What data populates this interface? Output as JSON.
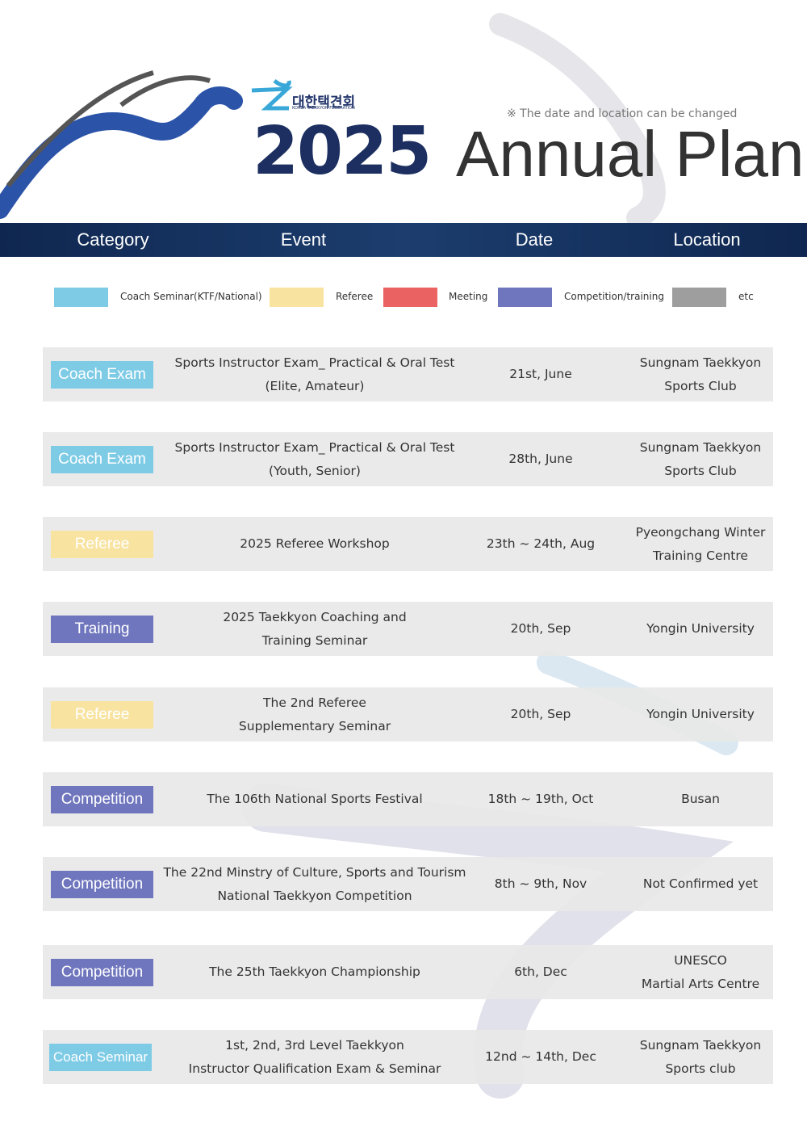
{
  "header": {
    "logo_korean": "대한택견회",
    "logo_english": "KOREA TAEKKYON FEDERATION",
    "year": "2025",
    "title": "Annual Plan",
    "note": "※ The date and location can be changed"
  },
  "columns": [
    "Category",
    "Event",
    "Date",
    "Location"
  ],
  "legend": [
    {
      "label": "Coach Seminar(KTF/National)",
      "color": "#7ecbe6"
    },
    {
      "label": "Referee",
      "color": "#f8e3a1"
    },
    {
      "label": "Meeting",
      "color": "#ea6262"
    },
    {
      "label": "Competition/training",
      "color": "#6f76bd"
    },
    {
      "label": "etc",
      "color": "#9e9e9e"
    }
  ],
  "rows": [
    {
      "category": "Coach Exam",
      "color": "#7ecbe6",
      "event": [
        "Sports Instructor Exam_ Practical & Oral Test",
        "(Elite, Amateur)"
      ],
      "date": "21st, June",
      "location": [
        "Sungnam Taekkyon",
        "Sports Club"
      ]
    },
    {
      "category": "Coach Exam",
      "color": "#7ecbe6",
      "event": [
        "Sports Instructor Exam_ Practical & Oral Test",
        "(Youth, Senior)"
      ],
      "date": "28th, June",
      "location": [
        "Sungnam Taekkyon",
        "Sports Club"
      ]
    },
    {
      "category": "Referee",
      "color": "#f8e3a1",
      "event": [
        "2025 Referee Workshop"
      ],
      "date": "23th ~ 24th, Aug",
      "location": [
        "Pyeongchang Winter",
        "Training Centre"
      ]
    },
    {
      "category": "Training",
      "color": "#6f76bd",
      "event": [
        "2025 Taekkyon Coaching and",
        "Training Seminar"
      ],
      "date": "20th, Sep",
      "location": [
        "Yongin University"
      ]
    },
    {
      "category": "Referee",
      "color": "#f8e3a1",
      "event": [
        "The 2nd Referee",
        "Supplementary Seminar"
      ],
      "date": "20th, Sep",
      "location": [
        "Yongin University"
      ]
    },
    {
      "category": "Competition",
      "color": "#6f76bd",
      "event": [
        "The 106th National Sports Festival"
      ],
      "date": "18th ~ 19th, Oct",
      "location": [
        "Busan"
      ]
    },
    {
      "category": "Competition",
      "color": "#6f76bd",
      "event": [
        "The 22nd Minstry of  Culture, Sports and Tourism",
        "National Taekkyon Competition"
      ],
      "date": "8th ~ 9th, Nov",
      "location": [
        "Not Confirmed yet"
      ]
    },
    {
      "category": "Competition",
      "color": "#6f76bd",
      "event": [
        "The 25th Taekkyon Championship"
      ],
      "date": "6th, Dec",
      "location": [
        "UNESCO",
        "Martial Arts Centre"
      ]
    },
    {
      "category": "Coach Seminar",
      "color": "#7ecbe6",
      "event": [
        "1st, 2nd, 3rd Level Taekkyon",
        "Instructor Qualification Exam & Seminar"
      ],
      "date": "12nd ~ 14th, Dec",
      "location": [
        "Sungnam Taekkyon",
        "Sports club"
      ]
    }
  ]
}
